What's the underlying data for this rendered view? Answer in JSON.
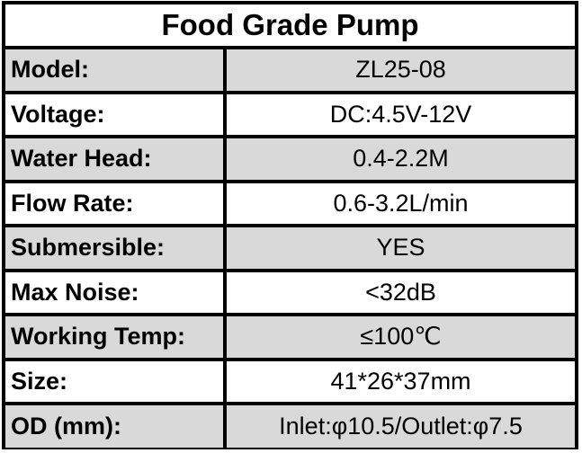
{
  "title": "Food Grade Pump",
  "colors": {
    "border": "#000000",
    "shade": "#d9d9d9",
    "plain": "#ffffff"
  },
  "rows": [
    {
      "label": "Model:",
      "value": "ZL25-08",
      "shaded": true
    },
    {
      "label": "Voltage:",
      "value": "DC:4.5V-12V",
      "shaded": false
    },
    {
      "label": "Water Head:",
      "value": "0.4-2.2M",
      "shaded": true
    },
    {
      "label": "Flow Rate:",
      "value": "0.6-3.2L/min",
      "shaded": false
    },
    {
      "label": "Submersible:",
      "value": "YES",
      "shaded": true
    },
    {
      "label": "Max Noise:",
      "value": "<32dB",
      "shaded": false
    },
    {
      "label": "Working Temp:",
      "value": "≤100℃",
      "shaded": true
    },
    {
      "label": "Size:",
      "value": "41*26*37mm",
      "shaded": false
    },
    {
      "label": "OD (mm):",
      "value": "Inlet:φ10.5/Outlet:φ7.5",
      "shaded": true
    }
  ]
}
